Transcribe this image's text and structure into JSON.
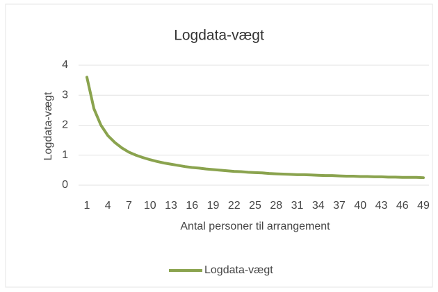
{
  "chart_data": {
    "type": "line",
    "title": "Logdata-vægt",
    "x_label": "Antal personer til arrangement",
    "y_label": "Logdata-vægt",
    "x": [
      1,
      2,
      3,
      4,
      5,
      6,
      7,
      8,
      9,
      10,
      11,
      12,
      13,
      14,
      15,
      16,
      17,
      18,
      19,
      20,
      21,
      22,
      23,
      24,
      25,
      26,
      27,
      28,
      29,
      30,
      31,
      32,
      33,
      34,
      35,
      36,
      37,
      38,
      39,
      40,
      41,
      42,
      43,
      44,
      45,
      46,
      47,
      48,
      49
    ],
    "series": [
      {
        "name": "Logdata-vægt",
        "color": "#8aa34e",
        "values": [
          3.6,
          2.55,
          2.0,
          1.65,
          1.42,
          1.24,
          1.1,
          1.0,
          0.92,
          0.85,
          0.79,
          0.74,
          0.7,
          0.66,
          0.62,
          0.59,
          0.57,
          0.54,
          0.52,
          0.5,
          0.48,
          0.46,
          0.45,
          0.43,
          0.42,
          0.41,
          0.39,
          0.38,
          0.37,
          0.36,
          0.35,
          0.35,
          0.34,
          0.33,
          0.32,
          0.32,
          0.31,
          0.3,
          0.3,
          0.29,
          0.29,
          0.28,
          0.28,
          0.27,
          0.27,
          0.26,
          0.26,
          0.26,
          0.25
        ]
      }
    ],
    "xlim": [
      1,
      49
    ],
    "xticks": [
      1,
      4,
      7,
      10,
      13,
      16,
      19,
      22,
      25,
      28,
      31,
      34,
      37,
      40,
      43,
      46,
      49
    ],
    "ylim": [
      0,
      4
    ],
    "yticks": [
      0,
      1,
      2,
      3,
      4
    ],
    "grid": true,
    "legend": "bottom"
  }
}
